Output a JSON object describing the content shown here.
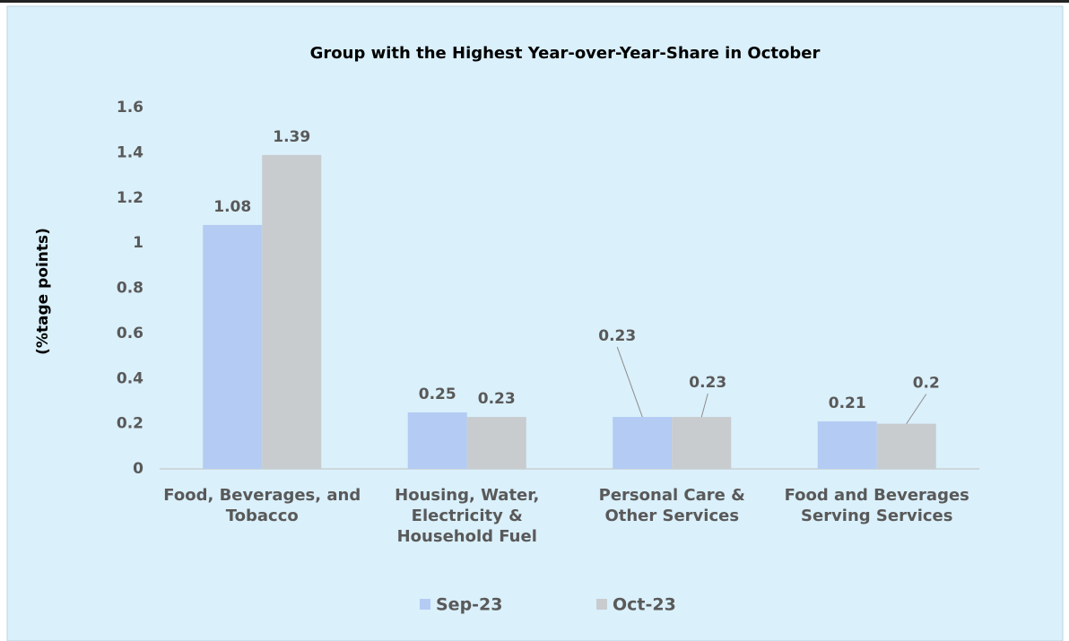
{
  "chart_data": {
    "type": "bar",
    "title": "Group with the Highest Year-over-Year-Share in October",
    "y_label": "(%tage points)",
    "categories": [
      "Food, Beverages, and Tobacco",
      "Housing, Water, Electricity & Household Fuel",
      "Personal Care & Other Services",
      "Food and Beverages Serving Services"
    ],
    "series": [
      {
        "name": "Sep-23",
        "color": "#b4cbf3",
        "values": [
          1.08,
          0.25,
          0.23,
          0.21
        ]
      },
      {
        "name": "Oct-23",
        "color": "#c8cccf",
        "values": [
          1.39,
          0.23,
          0.23,
          0.2
        ]
      }
    ],
    "ylim": [
      0,
      1.6
    ],
    "yticks": [
      0,
      0.2,
      0.4,
      0.6,
      0.8,
      1,
      1.2,
      1.4,
      1.6
    ],
    "grid": false,
    "legend": "bottom"
  }
}
